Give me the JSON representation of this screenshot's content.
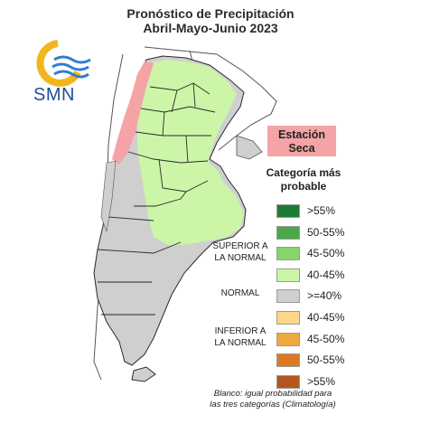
{
  "header": {
    "title_line1": "Pronóstico de Precipitación",
    "title_line2": "Abril-Mayo-Junio 2023"
  },
  "logo": {
    "text": "SMN",
    "sun_color": "#f2b51d",
    "wave_color": "#2f7fd0"
  },
  "dry_station": {
    "line1": "Estación",
    "line2": "Seca",
    "color": "#f4a3a6"
  },
  "legend": {
    "title_line1": "Categoría más",
    "title_line2": "probable",
    "groups": {
      "superior_line1": "SUPERIOR A",
      "superior_line2": "LA NORMAL",
      "normal": "NORMAL",
      "inferior_line1": "INFERIOR A",
      "inferior_line2": "LA NORMAL"
    },
    "entries": [
      {
        "label": ">55%",
        "color": "#1e7b34"
      },
      {
        "label": "50-55%",
        "color": "#4aa84a"
      },
      {
        "label": "45-50%",
        "color": "#86d46c"
      },
      {
        "label": "40-45%",
        "color": "#ccf5a8"
      },
      {
        "label": ">=40%",
        "color": "#cfcfcf"
      },
      {
        "label": "40-45%",
        "color": "#fdd68a"
      },
      {
        "label": "45-50%",
        "color": "#f0a93e"
      },
      {
        "label": "50-55%",
        "color": "#dc7a22"
      },
      {
        "label": ">55%",
        "color": "#b4571f"
      }
    ]
  },
  "footnote": {
    "line1": "Blanco: igual probabilidad para",
    "line2": "las tres categorías (Climatología)"
  },
  "map_colors": {
    "superior": "#ccf5a8",
    "normal": "#cfcfcf",
    "dry": "#f4a3a6",
    "border": "#2a2a2a"
  }
}
